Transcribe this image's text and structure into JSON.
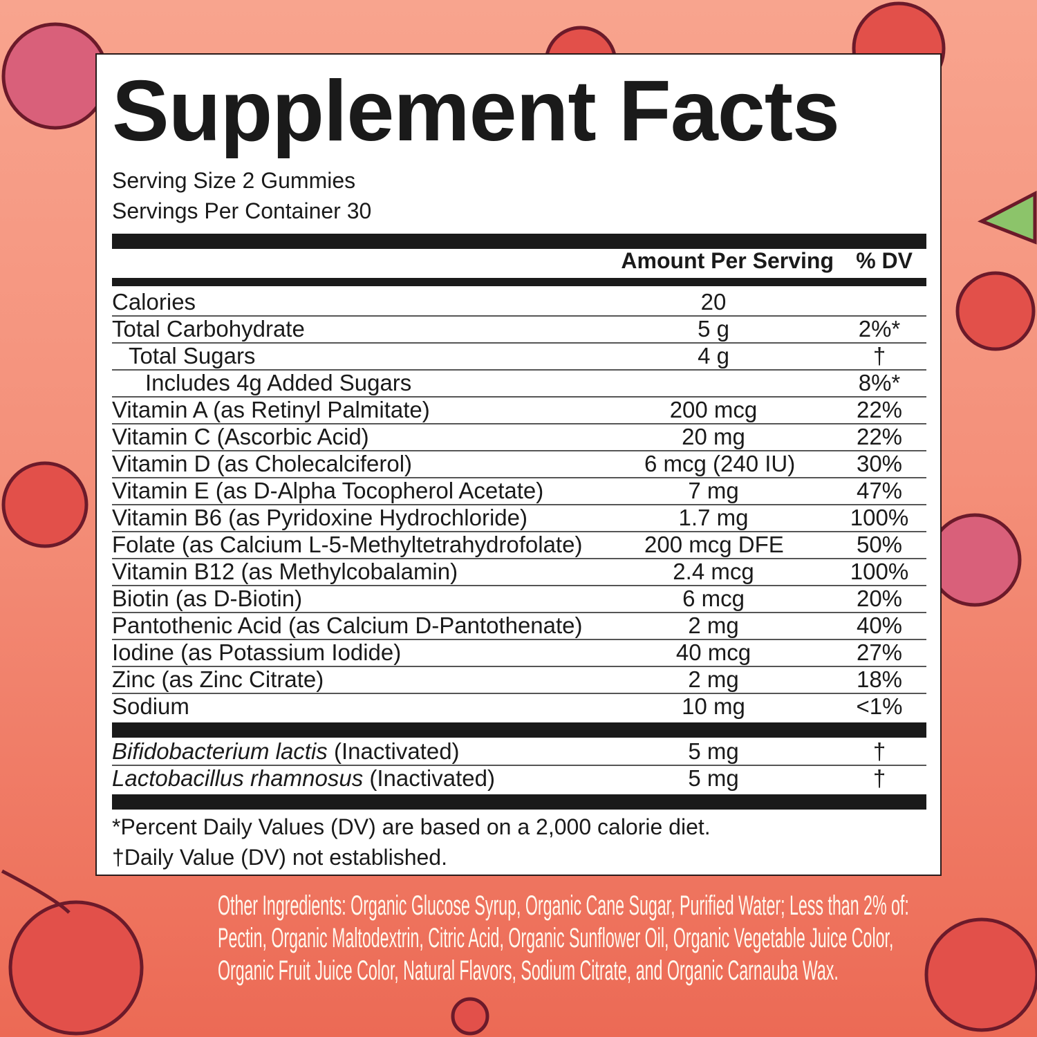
{
  "title": "Supplement Facts",
  "serving_size": "Serving Size 2 Gummies",
  "servings_per_container": "Servings Per Container 30",
  "header": {
    "amount": "Amount Per Serving",
    "dv": "% DV"
  },
  "rows": [
    {
      "name": "Calories",
      "amount": "20",
      "dv": ""
    },
    {
      "name": "Total Carbohydrate",
      "amount": "5 g",
      "dv": "2%*"
    },
    {
      "name": "Total Sugars",
      "amount": "4 g",
      "dv": "†"
    },
    {
      "name": "Includes 4g Added Sugars",
      "amount": "",
      "dv": "8%*"
    },
    {
      "name": "Vitamin A (as Retinyl Palmitate)",
      "amount": "200 mcg",
      "dv": "22%"
    },
    {
      "name": "Vitamin C (Ascorbic Acid)",
      "amount": "20 mg",
      "dv": "22%"
    },
    {
      "name": "Vitamin D (as Cholecalciferol)",
      "amount": "6 mcg (240 IU)",
      "dv": "30%"
    },
    {
      "name": "Vitamin E (as D-Alpha Tocopherol Acetate)",
      "amount": "7 mg",
      "dv": "47%"
    },
    {
      "name": "Vitamin B6 (as Pyridoxine Hydrochloride)",
      "amount": "1.7 mg",
      "dv": "100%"
    },
    {
      "name": "Folate (as Calcium L-5-Methyltetrahydrofolate)",
      "amount": "200 mcg DFE",
      "dv": "50%"
    },
    {
      "name": "Vitamin B12 (as Methylcobalamin)",
      "amount": "2.4 mcg",
      "dv": "100%"
    },
    {
      "name": "Biotin (as D-Biotin)",
      "amount": "6 mcg",
      "dv": "20%"
    },
    {
      "name": "Pantothenic Acid (as Calcium D-Pantothenate)",
      "amount": "2 mg",
      "dv": "40%"
    },
    {
      "name": "Iodine (as Potassium Iodide)",
      "amount": "40 mcg",
      "dv": "27%"
    },
    {
      "name": "Zinc (as Zinc Citrate)",
      "amount": "2 mg",
      "dv": "18%"
    },
    {
      "name": "Sodium",
      "amount": "10 mg",
      "dv": "<1%"
    }
  ],
  "probiotics": [
    {
      "species": "Bifidobacterium lactis",
      "note": " (Inactivated)",
      "amount": "5 mg",
      "dv": "†"
    },
    {
      "species": "Lactobacillus rhamnosus",
      "note": " (Inactivated)",
      "amount": "5 mg",
      "dv": "†"
    }
  ],
  "footnotes": [
    "*Percent Daily Values (DV) are based on a 2,000 calorie diet.",
    "†Daily Value (DV) not established."
  ],
  "other_ingredients": [
    "Other Ingredients: Organic Glucose Syrup, Organic Cane Sugar, Purified Water; Less than 2% of:",
    "Pectin, Organic Maltodextrin, Citric Acid, Organic Sunflower Oil, Organic Vegetable Juice Color,",
    "Organic Fruit Juice Color, Natural Flavors, Sodium Citrate, and Organic Carnauba Wax."
  ],
  "colors": {
    "background_top": "#f8a48e",
    "background_bottom": "#ec6a55",
    "fruit_red": "#e2504a",
    "outline": "#6b1a2a",
    "leaf": "#8cc46a"
  }
}
